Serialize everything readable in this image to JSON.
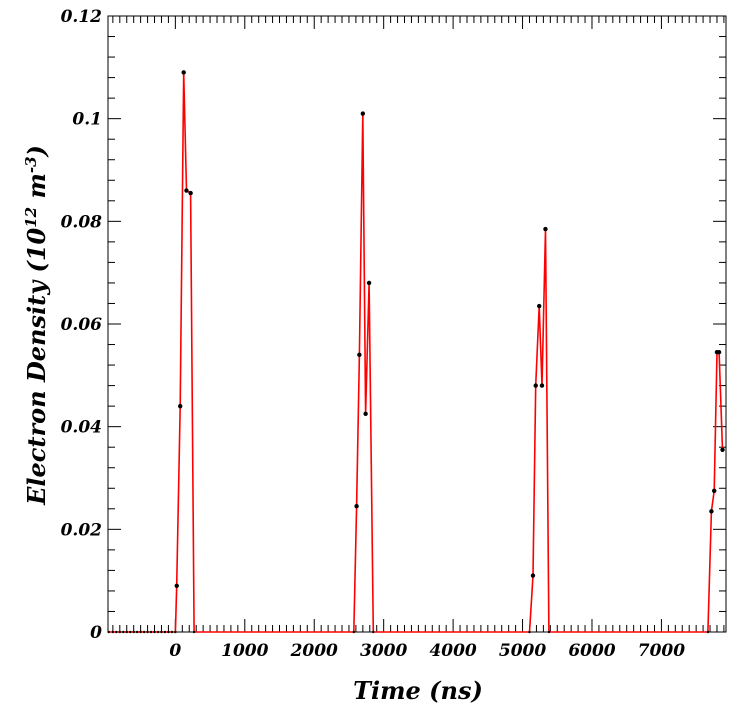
{
  "chart_data": {
    "type": "line",
    "xlabel": "Time (ns)",
    "ylabel_main": "Electron Density (10",
    "ylabel_exp1": "12",
    "ylabel_mid": " m",
    "ylabel_exp2": "-3",
    "ylabel_end": ")",
    "xlim": [
      -970,
      7930
    ],
    "ylim": [
      0,
      0.12
    ],
    "x_ticks": [
      0,
      1000,
      2000,
      3000,
      4000,
      5000,
      6000,
      7000
    ],
    "x_tick_labels": [
      "0",
      "1000",
      "2000",
      "3000",
      "4000",
      "5000",
      "6000",
      "7000"
    ],
    "y_ticks": [
      0,
      0.02,
      0.04,
      0.06,
      0.08,
      0.1,
      0.12
    ],
    "y_tick_labels": [
      "0",
      "0.02",
      "0.04",
      "0.06",
      "0.08",
      "0.1",
      "0.12"
    ],
    "grid": false,
    "line_color": "#ff0000",
    "marker_color": "#000000",
    "baseline_x": [
      -960,
      -900,
      -850,
      -800,
      -750,
      -700,
      -650,
      -600,
      -550,
      -500,
      -450,
      -400,
      -350,
      -300,
      -250,
      -200,
      -150,
      -100,
      -50
    ],
    "peaks": [
      {
        "x": [
          0,
          20,
          70,
          120,
          160,
          220,
          270
        ],
        "y": [
          0,
          0.009,
          0.044,
          0.109,
          0.086,
          0.0855,
          0
        ]
      },
      {
        "x": [
          2570,
          2610,
          2650,
          2700,
          2740,
          2790,
          2850
        ],
        "y": [
          0,
          0.0245,
          0.054,
          0.101,
          0.0425,
          0.068,
          0
        ]
      },
      {
        "x": [
          5100,
          5150,
          5190,
          5240,
          5280,
          5330,
          5380
        ],
        "y": [
          0,
          0.011,
          0.048,
          0.0635,
          0.048,
          0.0785,
          0
        ]
      },
      {
        "x": [
          7670,
          7720,
          7760,
          7800,
          7830,
          7880
        ],
        "y": [
          0,
          0.0235,
          0.0275,
          0.0545,
          0.0545,
          0.0355
        ]
      }
    ]
  }
}
